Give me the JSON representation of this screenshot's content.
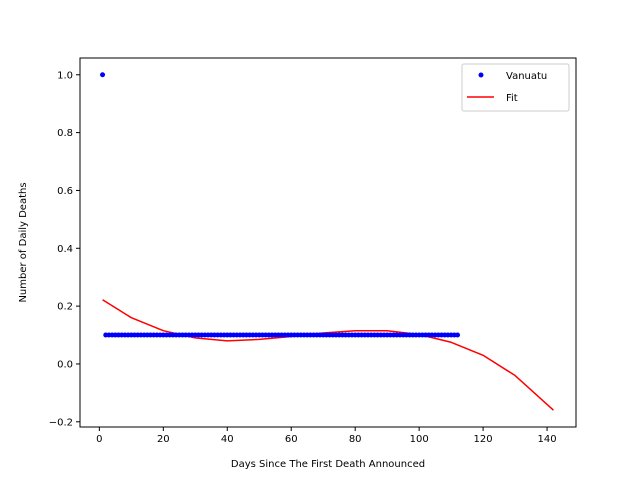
{
  "chart_data": {
    "type": "scatter",
    "title": "",
    "xlabel": "Days Since The First Death Announced",
    "ylabel": "Number of Daily Deaths",
    "xlim": [
      -6.05,
      149.05
    ],
    "ylim": [
      -0.218,
      1.058
    ],
    "xticks": [
      0,
      20,
      40,
      60,
      80,
      100,
      120,
      140
    ],
    "yticks": [
      -0.2,
      0.0,
      0.2,
      0.4,
      0.6,
      0.8,
      1.0
    ],
    "xtick_labels": [
      "0",
      "20",
      "40",
      "60",
      "80",
      "100",
      "120",
      "140"
    ],
    "ytick_labels": [
      "−0.2",
      "0.0",
      "0.2",
      "0.4",
      "0.6",
      "0.8",
      "1.0"
    ],
    "grid": false,
    "legend_position": "top-right",
    "series": [
      {
        "name": "Vanuatu",
        "style": "points",
        "color": "#0000ff",
        "first_point": {
          "x": 1,
          "y": 1.0
        },
        "constant_run": {
          "x_start": 2,
          "x_end": 112,
          "y": 0.1
        }
      },
      {
        "name": "Fit",
        "style": "line",
        "color": "#ff0000",
        "x": [
          1,
          10,
          20,
          30,
          40,
          50,
          60,
          70,
          80,
          90,
          100,
          110,
          120,
          130,
          142
        ],
        "y": [
          0.222,
          0.16,
          0.115,
          0.09,
          0.08,
          0.085,
          0.095,
          0.107,
          0.115,
          0.115,
          0.102,
          0.075,
          0.03,
          -0.04,
          -0.16
        ]
      }
    ]
  }
}
